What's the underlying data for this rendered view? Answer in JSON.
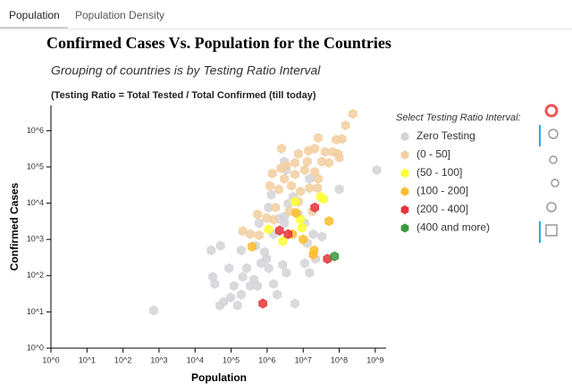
{
  "tabs": [
    "Population",
    "Population Density"
  ],
  "chart_data": {
    "type": "scatter",
    "title": "Confirmed Cases Vs. Population for the Countries",
    "subtitle": "Grouping of countries is by Testing Ratio Interval",
    "note": "(Testing Ratio = Total Tested / Total Confirmed (till today)",
    "x_label": "Population",
    "y_label": "Confirmed Cases",
    "legend_title": "Select Testing Ratio Interval:",
    "x_scale": "log",
    "y_scale": "log",
    "xlim": [
      1,
      2000000000
    ],
    "ylim": [
      1,
      5000000
    ],
    "xticks": [
      {
        "value": 1,
        "label": "10^0"
      },
      {
        "value": 10,
        "label": "10^1"
      },
      {
        "value": 100,
        "label": "10^2"
      },
      {
        "value": 1000,
        "label": "10^3"
      },
      {
        "value": 10000,
        "label": "10^4"
      },
      {
        "value": 100000,
        "label": "10^5"
      },
      {
        "value": 1000000,
        "label": "10^6"
      },
      {
        "value": 10000000,
        "label": "10^7"
      },
      {
        "value": 100000000,
        "label": "10^8"
      },
      {
        "value": 1000000000,
        "label": "10^9"
      }
    ],
    "yticks": [
      {
        "value": 1,
        "label": "10^0"
      },
      {
        "value": 10,
        "label": "10^1"
      },
      {
        "value": 100,
        "label": "10^2"
      },
      {
        "value": 1000,
        "label": "10^3"
      },
      {
        "value": 10000,
        "label": "10^4"
      },
      {
        "value": 100000,
        "label": "10^5"
      },
      {
        "value": 1000000,
        "label": "10^6"
      }
    ],
    "series": [
      {
        "name": "Zero Testing",
        "color": "#d4d4d8",
        "x": [
          710,
          28000,
          51000,
          31000,
          35000,
          49000,
          62000,
          97000,
          120000,
          150000,
          190000,
          210000,
          270000,
          430000,
          540000,
          680000,
          960000,
          1100000,
          1500000,
          1900000,
          2700000,
          3400000,
          5900000,
          11000000,
          15000000,
          22000000,
          480000,
          600000,
          1100000,
          1300000,
          2100000,
          3000000,
          3800000,
          5300000,
          7400000,
          11000000,
          13000000,
          19000000,
          33000000,
          3400000,
          3000000,
          15000000,
          1100000000,
          100000000,
          1500000,
          850000,
          3000000,
          190000,
          87000,
          340000
        ],
        "y": [
          11,
          500,
          670,
          93,
          59,
          15,
          19,
          25,
          52,
          15,
          30,
          93,
          160,
          78,
          52,
          220,
          290,
          160,
          59,
          30,
          200,
          120,
          17,
          220,
          120,
          290,
          670,
          2800,
          7600,
          17000,
          3700,
          2800,
          9600,
          15000,
          4900,
          2800,
          790,
          1400,
          1200,
          82000,
          140000,
          47000,
          82000,
          24000,
          1400,
          450,
          4300,
          500,
          160,
          52
        ]
      },
      {
        "name": "(0 - 50]",
        "color": "#f2cfa0",
        "x": [
          240000000,
          150000000,
          82000000,
          92000000,
          41000000,
          33000000,
          21000000,
          14000000,
          7400000,
          3400000,
          2400000,
          1200000,
          3000000,
          5900000,
          11000000,
          21000000,
          26000000,
          15000000,
          8400000,
          4700000,
          2100000,
          1700000,
          960000,
          540000,
          340000,
          210000,
          600000,
          1500000,
          4200000,
          7400000,
          52000000,
          66000000,
          100000000,
          120000000,
          26000000,
          13000000,
          5900000,
          25000000,
          18000000,
          1400000,
          2500000
        ],
        "y": [
          2900000,
          1400000,
          560000,
          230000,
          260000,
          140000,
          320000,
          280000,
          230000,
          110000,
          92000,
          30000,
          47000,
          62000,
          82000,
          73000,
          47000,
          26000,
          21000,
          30000,
          24000,
          7600,
          3900,
          4900,
          1400,
          1700,
          1300,
          3500,
          6000,
          11000,
          130000,
          260000,
          180000,
          590000,
          630000,
          140000,
          130000,
          26000,
          6000,
          66000,
          320000
        ]
      },
      {
        "name": "(50 - 100]",
        "color": "#ffff33",
        "x": [
          1100000,
          2700000,
          8300000,
          9300000,
          30000000,
          37000000,
          5900000
        ],
        "y": [
          1900,
          890,
          3600,
          2100,
          15000,
          13000,
          11000
        ]
      },
      {
        "name": "(100 - 200]",
        "color": "#fdbd2e",
        "x": [
          380000,
          5000000,
          10000000,
          20000000,
          52000000,
          6300000,
          19000000
        ],
        "y": [
          630,
          1400,
          1000,
          500,
          3200,
          5400,
          380
        ]
      },
      {
        "name": "(200 - 400]",
        "color": "#e8343a",
        "x": [
          760000,
          2200000,
          3800000,
          21000000,
          47000000
        ],
        "y": [
          17,
          1750,
          1400,
          7600,
          290
        ]
      },
      {
        "name": "(400 and more)",
        "color": "#3a9a3a",
        "x": [
          74000000
        ],
        "y": [
          340
        ]
      }
    ]
  }
}
